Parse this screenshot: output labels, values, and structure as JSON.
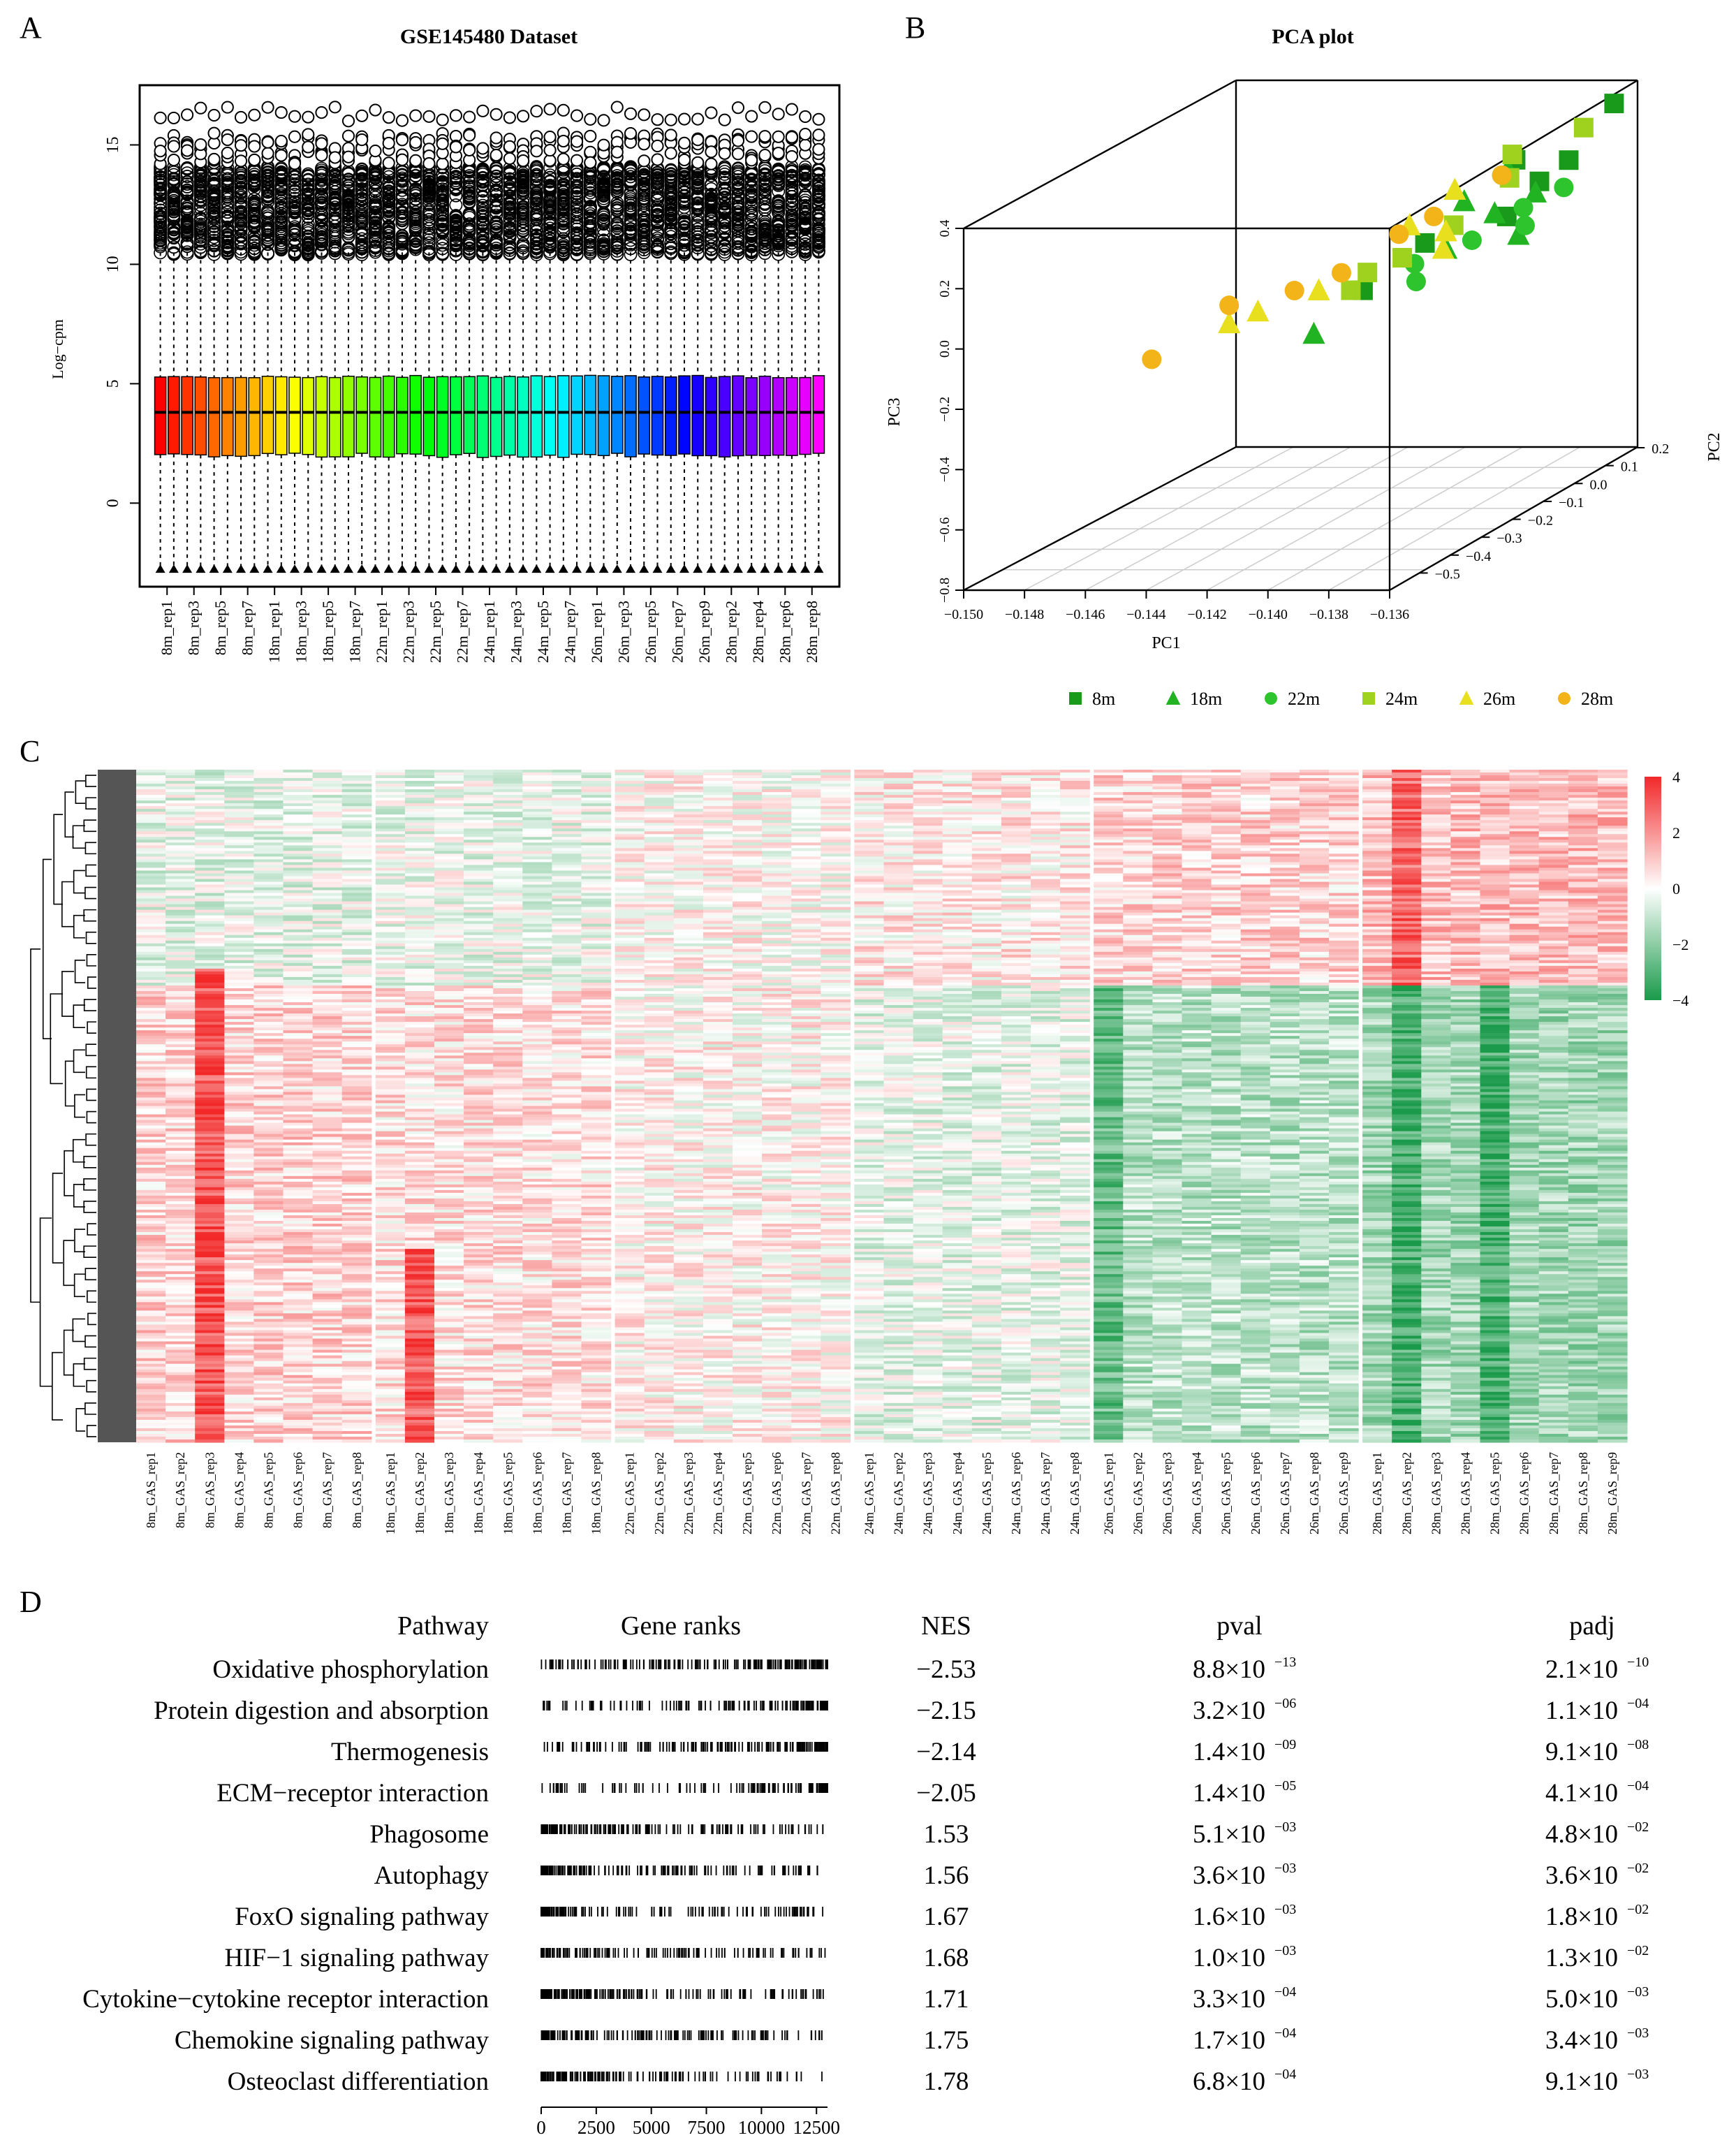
{
  "panels": {
    "A": {
      "label": "A",
      "chart_data": {
        "type": "box",
        "title": "GSE145480 Dataset",
        "ylabel": "Log−cpm",
        "ylim": [
          -3.5,
          17.5
        ],
        "yticks": [
          0,
          5,
          10,
          15
        ],
        "categories": [
          "8m_rep1",
          "8m_rep3",
          "8m_rep5",
          "8m_rep7",
          "18m_rep1",
          "18m_rep3",
          "18m_rep5",
          "18m_rep7",
          "22m_rep1",
          "22m_rep3",
          "22m_rep5",
          "22m_rep7",
          "24m_rep1",
          "24m_rep3",
          "24m_rep5",
          "24m_rep7",
          "26m_rep1",
          "26m_rep3",
          "26m_rep5",
          "26m_rep7",
          "26m_rep9",
          "28m_rep2",
          "28m_rep4",
          "28m_rep6",
          "28m_rep8"
        ],
        "n_boxes": 50,
        "box_summary": {
          "q1": 2,
          "median": 3.8,
          "q3": 5.3,
          "whisker_low": -2.8,
          "whisker_high": 10.5,
          "outliers_top": 16.3
        }
      }
    },
    "B": {
      "label": "B",
      "chart_data": {
        "type": "scatter3d",
        "title": "PCA plot",
        "xlabel": "PC1",
        "ylabel": "PC2",
        "zlabel": "PC3",
        "xticks": [
          "−0.150",
          "−0.148",
          "−0.146",
          "−0.144",
          "−0.142",
          "−0.140",
          "−0.138",
          "−0.136"
        ],
        "yticks": [
          "−0.5",
          "−0.4",
          "−0.3",
          "−0.2",
          "−0.1",
          "0.0",
          "0.1",
          "0.2"
        ],
        "zticks": [
          "−0.8",
          "−0.6",
          "−0.4",
          "−0.2",
          "0.0",
          "0.2",
          "0.4"
        ],
        "legend": [
          {
            "name": "8m",
            "shape": "square",
            "color": "#1a9a1a"
          },
          {
            "name": "18m",
            "shape": "triangle",
            "color": "#22b322"
          },
          {
            "name": "22m",
            "shape": "circle",
            "color": "#2ec42e"
          },
          {
            "name": "24m",
            "shape": "square",
            "color": "#9ed21e"
          },
          {
            "name": "26m",
            "shape": "triangle",
            "color": "#e8e01e"
          },
          {
            "name": "28m",
            "shape": "circle",
            "color": "#f2b418"
          }
        ],
        "points": [
          {
            "g": "8m",
            "x": -0.1368,
            "y": 0.15,
            "z": 0.38
          },
          {
            "g": "8m",
            "x": -0.1372,
            "y": 0.05,
            "z": 0.25
          },
          {
            "g": "8m",
            "x": -0.1374,
            "y": -0.02,
            "z": 0.22
          },
          {
            "g": "8m",
            "x": -0.1376,
            "y": -0.1,
            "z": 0.15
          },
          {
            "g": "8m",
            "x": -0.1384,
            "y": 0.0,
            "z": 0.28
          },
          {
            "g": "8m",
            "x": -0.1392,
            "y": -0.2,
            "z": 0.12
          },
          {
            "g": "8m",
            "x": -0.1396,
            "y": -0.35,
            "z": 0.05
          },
          {
            "g": "18m",
            "x": -0.137,
            "y": -0.12,
            "z": 0.1
          },
          {
            "g": "18m",
            "x": -0.138,
            "y": -0.1,
            "z": 0.16
          },
          {
            "g": "18m",
            "x": -0.1385,
            "y": -0.2,
            "z": 0.1
          },
          {
            "g": "18m",
            "x": -0.139,
            "y": -0.1,
            "z": 0.2
          },
          {
            "g": "18m",
            "x": -0.1392,
            "y": 0.05,
            "z": 0.22
          },
          {
            "g": "18m",
            "x": -0.1398,
            "y": -0.48,
            "z": -0.02
          },
          {
            "g": "18m",
            "x": -0.1372,
            "y": -0.05,
            "z": 0.2
          },
          {
            "g": "22m",
            "x": -0.1366,
            "y": -0.02,
            "z": 0.2
          },
          {
            "g": "22m",
            "x": -0.137,
            "y": -0.1,
            "z": 0.12
          },
          {
            "g": "22m",
            "x": -0.1376,
            "y": -0.05,
            "z": 0.15
          },
          {
            "g": "22m",
            "x": -0.1384,
            "y": -0.3,
            "z": 0.05
          },
          {
            "g": "22m",
            "x": -0.139,
            "y": -0.25,
            "z": 0.08
          },
          {
            "g": "22m",
            "x": -0.1394,
            "y": 0.05,
            "z": 0.2
          },
          {
            "g": "22m",
            "x": -0.1382,
            "y": -0.15,
            "z": 0.1
          },
          {
            "g": "24m",
            "x": -0.1378,
            "y": 0.15,
            "z": 0.3
          },
          {
            "g": "24m",
            "x": -0.1386,
            "y": 0.0,
            "z": 0.22
          },
          {
            "g": "24m",
            "x": -0.1388,
            "y": -0.15,
            "z": 0.15
          },
          {
            "g": "24m",
            "x": -0.1394,
            "y": -0.25,
            "z": 0.1
          },
          {
            "g": "24m",
            "x": -0.14,
            "y": -0.3,
            "z": 0.08
          },
          {
            "g": "24m",
            "x": -0.1396,
            "y": 0.1,
            "z": 0.24
          },
          {
            "g": "24m",
            "x": -0.14,
            "y": -0.35,
            "z": 0.05
          },
          {
            "g": "26m",
            "x": -0.1386,
            "y": -0.2,
            "z": 0.1
          },
          {
            "g": "26m",
            "x": -0.1396,
            "y": -0.1,
            "z": 0.1
          },
          {
            "g": "26m",
            "x": -0.1404,
            "y": 0.0,
            "z": 0.18
          },
          {
            "g": "26m",
            "x": -0.1408,
            "y": -0.1,
            "z": 0.12
          },
          {
            "g": "26m",
            "x": -0.1416,
            "y": -0.3,
            "z": 0.02
          },
          {
            "g": "26m",
            "x": -0.1436,
            "y": -0.3,
            "z": -0.05
          },
          {
            "g": "26m",
            "x": -0.144,
            "y": -0.35,
            "z": -0.06
          },
          {
            "g": "28m",
            "x": -0.1394,
            "y": 0.05,
            "z": 0.2
          },
          {
            "g": "28m",
            "x": -0.14,
            "y": -0.1,
            "z": 0.15
          },
          {
            "g": "28m",
            "x": -0.1406,
            "y": -0.15,
            "z": 0.12
          },
          {
            "g": "28m",
            "x": -0.1414,
            "y": -0.25,
            "z": 0.05
          },
          {
            "g": "28m",
            "x": -0.1424,
            "y": -0.3,
            "z": 0.02
          },
          {
            "g": "28m",
            "x": -0.144,
            "y": -0.35,
            "z": 0.0
          },
          {
            "g": "28m",
            "x": -0.146,
            "y": -0.4,
            "z": -0.15
          }
        ]
      }
    },
    "C": {
      "label": "C",
      "chart_data": {
        "type": "heatmap",
        "legend_ticks": [
          "4",
          "2",
          "0",
          "−2",
          "−4"
        ],
        "color_low": "#1a9a4a",
        "color_mid": "#ffffff",
        "color_high": "#f22828",
        "groups": [
          [
            "8m_GAS_rep1",
            "8m_GAS_rep2",
            "8m_GAS_rep3",
            "8m_GAS_rep4",
            "8m_GAS_rep5",
            "8m_GAS_rep6",
            "8m_GAS_rep7",
            "8m_GAS_rep8"
          ],
          [
            "18m_GAS_rep1",
            "18m_GAS_rep2",
            "18m_GAS_rep3",
            "18m_GAS_rep4",
            "18m_GAS_rep5",
            "18m_GAS_rep6",
            "18m_GAS_rep7",
            "18m_GAS_rep8"
          ],
          [
            "22m_GAS_rep1",
            "22m_GAS_rep2",
            "22m_GAS_rep3",
            "22m_GAS_rep4",
            "22m_GAS_rep5",
            "22m_GAS_rep6",
            "22m_GAS_rep7",
            "22m_GAS_rep8"
          ],
          [
            "24m_GAS_rep1",
            "24m_GAS_rep2",
            "24m_GAS_rep3",
            "24m_GAS_rep4",
            "24m_GAS_rep5",
            "24m_GAS_rep6",
            "24m_GAS_rep7",
            "24m_GAS_rep8"
          ],
          [
            "26m_GAS_rep1",
            "26m_GAS_rep2",
            "26m_GAS_rep3",
            "26m_GAS_rep4",
            "26m_GAS_rep5",
            "26m_GAS_rep6",
            "26m_GAS_rep7",
            "26m_GAS_rep8",
            "26m_GAS_rep9"
          ],
          [
            "28m_GAS_rep1",
            "28m_GAS_rep2",
            "28m_GAS_rep3",
            "28m_GAS_rep4",
            "28m_GAS_rep5",
            "28m_GAS_rep6",
            "28m_GAS_rep7",
            "28m_GAS_rep8",
            "28m_GAS_rep9"
          ]
        ]
      }
    },
    "D": {
      "label": "D",
      "chart_data": {
        "type": "table",
        "headers": {
          "pathway": "Pathway",
          "ranks": "Gene ranks",
          "nes": "NES",
          "pval": "pval",
          "padj": "padj"
        },
        "rank_axis": [
          "0",
          "2500",
          "5000",
          "7500",
          "10000",
          "12500"
        ],
        "rank_max": 13000,
        "rows": [
          {
            "pathway": "Oxidative phosphorylation",
            "nes": "−2.53",
            "pval_m": "8.8×10",
            "pval_e": "−13",
            "padj_m": "2.1×10",
            "padj_e": "−10",
            "dir": "neg",
            "density": 1.0
          },
          {
            "pathway": "Protein digestion and absorption",
            "nes": "−2.15",
            "pval_m": "3.2×10",
            "pval_e": "−06",
            "padj_m": "1.1×10",
            "padj_e": "−04",
            "dir": "neg",
            "density": 0.6
          },
          {
            "pathway": "Thermogenesis",
            "nes": "−2.14",
            "pval_m": "1.4×10",
            "pval_e": "−09",
            "padj_m": "9.1×10",
            "padj_e": "−08",
            "dir": "neg",
            "density": 0.9
          },
          {
            "pathway": "ECM−receptor interaction",
            "nes": "−2.05",
            "pval_m": "1.4×10",
            "pval_e": "−05",
            "padj_m": "4.1×10",
            "padj_e": "−04",
            "dir": "neg",
            "density": 0.5
          },
          {
            "pathway": "Phagosome",
            "nes": "1.53",
            "pval_m": "5.1×10",
            "pval_e": "−03",
            "padj_m": "4.8×10",
            "padj_e": "−02",
            "dir": "pos",
            "density": 0.7
          },
          {
            "pathway": "Autophagy",
            "nes": "1.56",
            "pval_m": "3.6×10",
            "pval_e": "−03",
            "padj_m": "3.6×10",
            "padj_e": "−02",
            "dir": "pos",
            "density": 0.7
          },
          {
            "pathway": "FoxO signaling pathway",
            "nes": "1.67",
            "pval_m": "1.6×10",
            "pval_e": "−03",
            "padj_m": "1.8×10",
            "padj_e": "−02",
            "dir": "pos",
            "density": 0.6
          },
          {
            "pathway": "HIF−1 signaling pathway",
            "nes": "1.68",
            "pval_m": "1.0×10",
            "pval_e": "−03",
            "padj_m": "1.3×10",
            "padj_e": "−02",
            "dir": "pos",
            "density": 0.6
          },
          {
            "pathway": "Cytokine−cytokine receptor interaction",
            "nes": "1.71",
            "pval_m": "3.3×10",
            "pval_e": "−04",
            "padj_m": "5.0×10",
            "padj_e": "−03",
            "dir": "pos",
            "density": 0.8
          },
          {
            "pathway": "Chemokine signaling pathway",
            "nes": "1.75",
            "pval_m": "1.7×10",
            "pval_e": "−04",
            "padj_m": "3.4×10",
            "padj_e": "−03",
            "dir": "pos",
            "density": 0.7
          },
          {
            "pathway": "Osteoclast differentiation",
            "nes": "1.78",
            "pval_m": "6.8×10",
            "pval_e": "−04",
            "padj_m": "9.1×10",
            "padj_e": "−03",
            "dir": "pos",
            "density": 0.7
          }
        ]
      }
    }
  }
}
